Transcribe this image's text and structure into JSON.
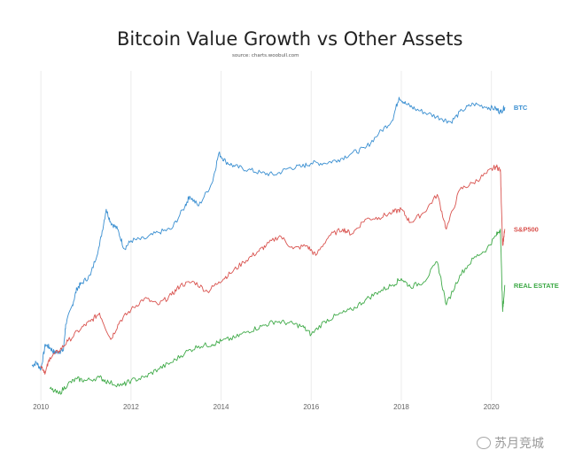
{
  "chart_data": {
    "type": "line",
    "title": "Bitcoin Value Growth vs Other Assets",
    "subtitle": "source: charts.woobull.com",
    "xlabel": "",
    "ylabel": "",
    "x_ticks": [
      "2010",
      "2012",
      "2014",
      "2016",
      "2018",
      "2020"
    ],
    "xlim": [
      2009.8,
      2020.4
    ],
    "ylim": [
      0,
      100
    ],
    "y_scale": "relative (unlabeled, log-like growth index)",
    "grid": "vertical gridlines at each labeled year",
    "legend": "series labels at right end of lines",
    "series": [
      {
        "name": "BTC",
        "color": "#3a8fd1",
        "points": [
          [
            2009.8,
            10.5
          ],
          [
            2009.9,
            11.5
          ],
          [
            2010.0,
            9.5
          ],
          [
            2010.1,
            17
          ],
          [
            2010.2,
            16
          ],
          [
            2010.3,
            14.5
          ],
          [
            2010.4,
            14.8
          ],
          [
            2010.5,
            15.2
          ],
          [
            2010.55,
            23
          ],
          [
            2010.7,
            29
          ],
          [
            2010.8,
            34
          ],
          [
            2010.9,
            35.5
          ],
          [
            2011.1,
            38
          ],
          [
            2011.3,
            47
          ],
          [
            2011.45,
            58
          ],
          [
            2011.55,
            54
          ],
          [
            2011.7,
            52
          ],
          [
            2011.85,
            46
          ],
          [
            2012.0,
            48.5
          ],
          [
            2012.3,
            49
          ],
          [
            2012.6,
            51
          ],
          [
            2012.9,
            52
          ],
          [
            2013.2,
            59
          ],
          [
            2013.3,
            62
          ],
          [
            2013.5,
            59
          ],
          [
            2013.8,
            66
          ],
          [
            2013.95,
            75
          ],
          [
            2014.1,
            72.5
          ],
          [
            2014.3,
            71
          ],
          [
            2014.6,
            70
          ],
          [
            2014.9,
            69
          ],
          [
            2015.2,
            68.5
          ],
          [
            2015.5,
            70.5
          ],
          [
            2015.8,
            71
          ],
          [
            2016.0,
            72
          ],
          [
            2016.3,
            72
          ],
          [
            2016.6,
            73
          ],
          [
            2016.9,
            75
          ],
          [
            2017.2,
            76.5
          ],
          [
            2017.5,
            81
          ],
          [
            2017.8,
            85
          ],
          [
            2017.95,
            92
          ],
          [
            2018.1,
            90
          ],
          [
            2018.3,
            88.5
          ],
          [
            2018.6,
            87
          ],
          [
            2018.9,
            85.5
          ],
          [
            2019.1,
            84.5
          ],
          [
            2019.35,
            88
          ],
          [
            2019.6,
            90
          ],
          [
            2019.9,
            89
          ],
          [
            2020.1,
            88.5
          ],
          [
            2020.2,
            87.5
          ],
          [
            2020.3,
            89
          ]
        ]
      },
      {
        "name": "S&P500",
        "color": "#d9534f",
        "points": [
          [
            2010.0,
            10.5
          ],
          [
            2010.1,
            8.5
          ],
          [
            2010.2,
            13
          ],
          [
            2010.4,
            15
          ],
          [
            2010.6,
            18
          ],
          [
            2010.9,
            22
          ],
          [
            2011.1,
            24
          ],
          [
            2011.3,
            26.5
          ],
          [
            2011.55,
            18.5
          ],
          [
            2011.75,
            24
          ],
          [
            2012.0,
            27.5
          ],
          [
            2012.3,
            31
          ],
          [
            2012.6,
            29
          ],
          [
            2012.9,
            32
          ],
          [
            2013.1,
            35
          ],
          [
            2013.4,
            36
          ],
          [
            2013.7,
            33
          ],
          [
            2013.95,
            36
          ],
          [
            2014.2,
            38.5
          ],
          [
            2014.5,
            42
          ],
          [
            2014.8,
            45
          ],
          [
            2015.0,
            47
          ],
          [
            2015.3,
            50
          ],
          [
            2015.6,
            46
          ],
          [
            2015.9,
            47
          ],
          [
            2016.1,
            44
          ],
          [
            2016.4,
            50
          ],
          [
            2016.7,
            52
          ],
          [
            2016.9,
            50.5
          ],
          [
            2017.2,
            55
          ],
          [
            2017.5,
            55.5
          ],
          [
            2017.8,
            57
          ],
          [
            2018.0,
            58
          ],
          [
            2018.2,
            54
          ],
          [
            2018.5,
            57
          ],
          [
            2018.8,
            62.5
          ],
          [
            2019.0,
            52
          ],
          [
            2019.3,
            64
          ],
          [
            2019.6,
            66
          ],
          [
            2019.9,
            69
          ],
          [
            2020.1,
            71
          ],
          [
            2020.2,
            70
          ],
          [
            2020.25,
            47
          ],
          [
            2020.3,
            52
          ]
        ]
      },
      {
        "name": "REAL ESTATE",
        "color": "#3faa48",
        "points": [
          [
            2010.2,
            3.5
          ],
          [
            2010.4,
            2
          ],
          [
            2010.6,
            5
          ],
          [
            2010.8,
            6.5
          ],
          [
            2011.0,
            6
          ],
          [
            2011.3,
            7
          ],
          [
            2011.5,
            5.5
          ],
          [
            2011.8,
            4.5
          ],
          [
            2012.0,
            6
          ],
          [
            2012.3,
            7
          ],
          [
            2012.6,
            9.5
          ],
          [
            2012.9,
            11.5
          ],
          [
            2013.2,
            14.5
          ],
          [
            2013.5,
            16.5
          ],
          [
            2013.8,
            17
          ],
          [
            2014.0,
            18
          ],
          [
            2014.3,
            19
          ],
          [
            2014.6,
            21
          ],
          [
            2014.9,
            22.5
          ],
          [
            2015.2,
            24
          ],
          [
            2015.5,
            23.5
          ],
          [
            2015.8,
            22.5
          ],
          [
            2016.0,
            20
          ],
          [
            2016.3,
            24
          ],
          [
            2016.6,
            26
          ],
          [
            2016.9,
            27.5
          ],
          [
            2017.2,
            30.5
          ],
          [
            2017.5,
            33
          ],
          [
            2017.8,
            35
          ],
          [
            2018.0,
            37
          ],
          [
            2018.2,
            34.5
          ],
          [
            2018.5,
            36
          ],
          [
            2018.8,
            42
          ],
          [
            2019.0,
            29
          ],
          [
            2019.3,
            38
          ],
          [
            2019.6,
            43
          ],
          [
            2019.9,
            46
          ],
          [
            2020.1,
            50
          ],
          [
            2020.2,
            52
          ],
          [
            2020.25,
            27
          ],
          [
            2020.3,
            35
          ]
        ]
      }
    ]
  },
  "watermark": {
    "text": "苏月竞城",
    "icon": "weibo-icon"
  }
}
